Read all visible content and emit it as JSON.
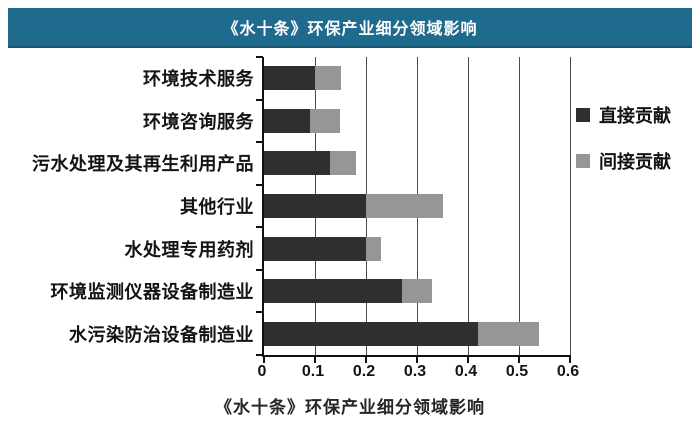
{
  "header": {
    "title": "《水十条》环保产业细分领域影响"
  },
  "caption": "《水十条》环保产业细分领域影响",
  "legend": {
    "items": [
      {
        "label": "直接贡献",
        "color": "#2f2f2f"
      },
      {
        "label": "间接贡献",
        "color": "#969696"
      }
    ]
  },
  "colors": {
    "header_bg": "#1e6b8e",
    "header_text": "#ffffff",
    "direct_bar": "#2f2f2f",
    "indirect_bar": "#969696",
    "grid": "#4d4d4d",
    "axis": "#111111"
  },
  "chart_data": {
    "type": "bar",
    "orientation": "horizontal",
    "stacked": true,
    "title": "《水十条》环保产业细分领域影响",
    "categories": [
      "环境技术服务",
      "环境咨询服务",
      "污水处理及其再生利用产品",
      "其他行业",
      "水处理专用药剂",
      "环境监测仪器设备制造业",
      "水污染防治设备制造业"
    ],
    "series": [
      {
        "name": "直接贡献",
        "color": "#2f2f2f",
        "values": [
          0.1,
          0.09,
          0.13,
          0.2,
          0.2,
          0.27,
          0.42
        ]
      },
      {
        "name": "间接贡献",
        "color": "#969696",
        "values": [
          0.05,
          0.06,
          0.05,
          0.15,
          0.03,
          0.06,
          0.12
        ]
      }
    ],
    "totals": [
      0.15,
      0.15,
      0.18,
      0.35,
      0.23,
      0.33,
      0.54
    ],
    "xlim": [
      0,
      0.6
    ],
    "xticks": [
      0,
      0.1,
      0.2,
      0.3,
      0.4,
      0.5,
      0.6
    ],
    "xtick_labels": [
      "0",
      "0.1",
      "0.2",
      "0.3",
      "0.4",
      "0.5",
      "0.6"
    ],
    "xlabel": "",
    "ylabel": "",
    "grid": true,
    "legend_position": "right"
  }
}
